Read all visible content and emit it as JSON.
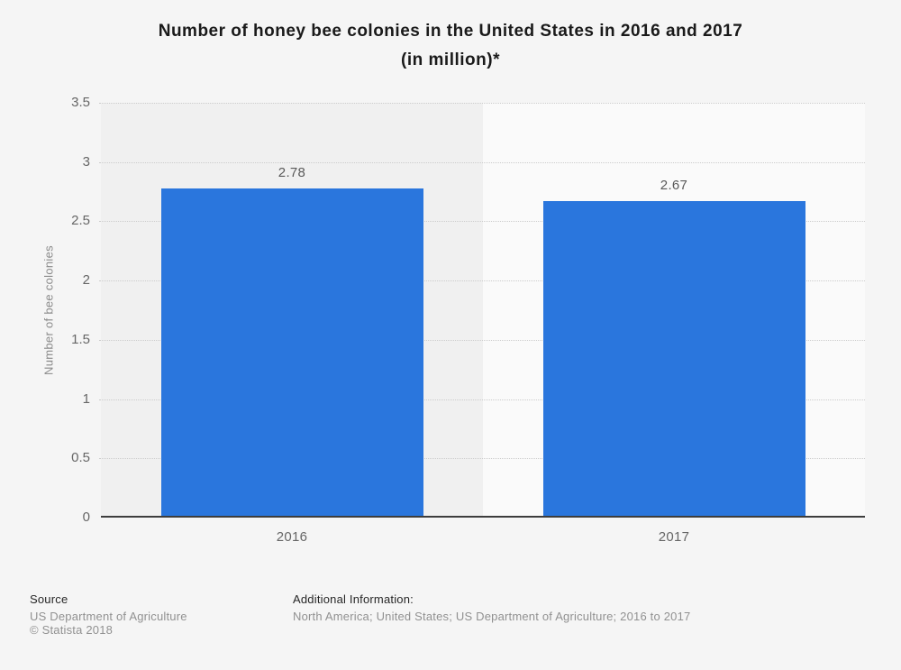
{
  "page": {
    "background_color": "#f5f5f5"
  },
  "title": {
    "line1": "Number of honey bee colonies in the United States in 2016 and 2017",
    "line2": "(in million)*"
  },
  "chart_data": {
    "type": "bar",
    "title": "Number of honey bee colonies in the United States in 2016 and 2017 (in million)*",
    "categories": [
      "2016",
      "2017"
    ],
    "values": [
      2.78,
      2.67
    ],
    "value_labels": [
      "2.78",
      "2.67"
    ],
    "xlabel": "",
    "ylabel": "Number of bee colonies",
    "ylim": [
      0,
      3.5
    ],
    "ytick_labels": [
      "3.5",
      "3",
      "2.5",
      "2",
      "1.5",
      "1",
      "0.5",
      "0"
    ],
    "grid": "horizontal-dotted",
    "legend": "none",
    "bar_color": "#2a76dd",
    "band_colors": [
      "#f0f0f0",
      "#fafafa"
    ],
    "gridline_color": "#cccccc",
    "axis_line_color": "#3d3d3d"
  },
  "footer": {
    "source_heading": "Source",
    "source_line1": "US Department of Agriculture",
    "source_line2": "© Statista 2018",
    "additional_heading": "Additional Information:",
    "additional_text": "North America; United States; US Department of Agriculture; 2016 to 2017"
  }
}
